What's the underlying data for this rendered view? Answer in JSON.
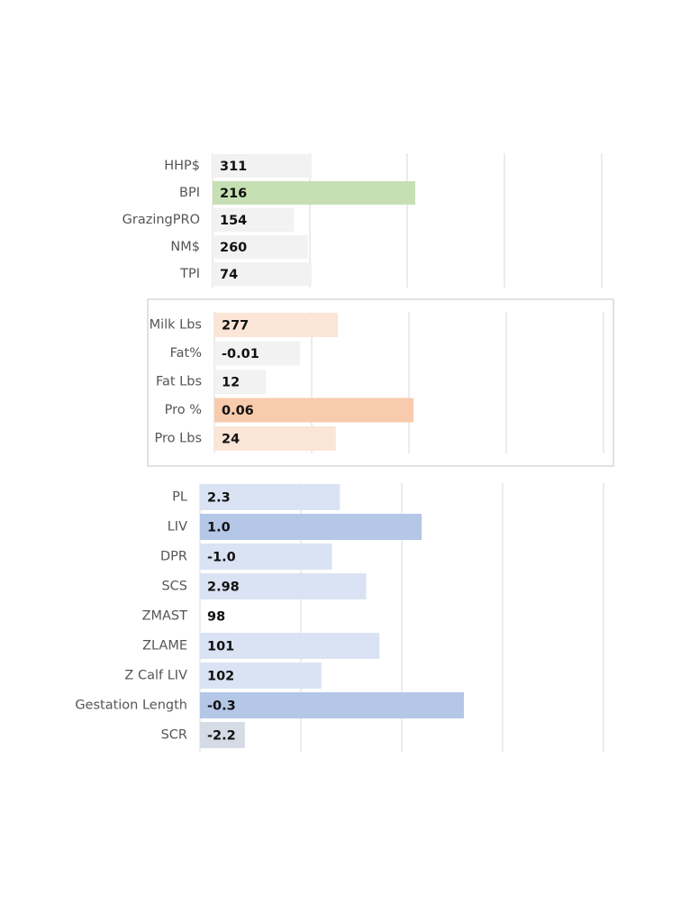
{
  "chart_data": [
    {
      "type": "bar",
      "orientation": "horizontal",
      "categories": [
        "HHP$",
        "BPI",
        "GrazingPRO",
        "NM$",
        "TPI"
      ],
      "values": [
        311,
        216,
        154,
        260,
        74
      ],
      "value_labels": [
        "311",
        "216",
        "154",
        "260",
        "74"
      ],
      "bar_fraction": [
        0.49,
        1.0,
        0.4,
        0.47,
        0.49
      ],
      "colors": [
        "#f2f2f2",
        "#c6e0b4",
        "#f2f2f2",
        "#f2f2f2",
        "#f2f2f2"
      ],
      "grid": true,
      "framed": false
    },
    {
      "type": "bar",
      "orientation": "horizontal",
      "categories": [
        "Milk Lbs",
        "Fat%",
        "Fat Lbs",
        "Pro %",
        "Pro Lbs"
      ],
      "values": [
        277,
        -0.01,
        12,
        0.06,
        24
      ],
      "value_labels": [
        "277",
        "-0.01",
        "12",
        "0.06",
        "24"
      ],
      "bar_fraction": [
        0.62,
        0.43,
        0.26,
        1.0,
        0.61
      ],
      "colors": [
        "#fbe5d6",
        "#f2f2f2",
        "#f2f2f2",
        "#f8cbad",
        "#fbe5d6"
      ],
      "grid": true,
      "framed": true
    },
    {
      "type": "bar",
      "orientation": "horizontal",
      "categories": [
        "PL",
        "LIV",
        "DPR",
        "SCS",
        "ZMAST",
        "ZLAME",
        "Z Calf LIV",
        "Gestation Length",
        "SCR"
      ],
      "values": [
        2.3,
        1.0,
        -1.0,
        2.98,
        98,
        101,
        102,
        -0.3,
        -2.2
      ],
      "value_labels": [
        "2.3",
        "1.0",
        "-1.0",
        "2.98",
        "98",
        "101",
        "102",
        "-0.3",
        "-2.2"
      ],
      "bar_fraction": [
        0.53,
        0.84,
        0.5,
        0.63,
        0.0,
        0.68,
        0.46,
        1.0,
        0.17
      ],
      "colors": [
        "#dae3f3",
        "#b4c7e7",
        "#dae3f3",
        "#dae3f3",
        "#dae3f3",
        "#dae3f3",
        "#dae3f3",
        "#b4c7e7",
        "#d6dce5"
      ],
      "grid": true,
      "framed": false
    }
  ]
}
